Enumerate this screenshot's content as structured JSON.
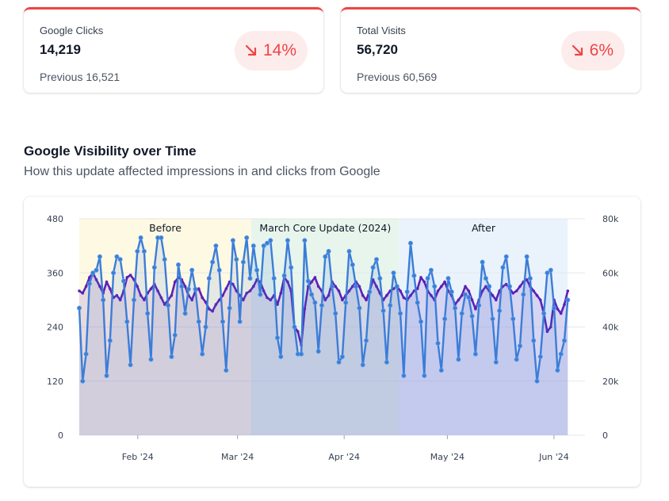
{
  "cards": [
    {
      "label": "Google Clicks",
      "value": "14,219",
      "previous": "Previous 16,521",
      "delta": "14%",
      "direction": "down",
      "color": "#ef4444"
    },
    {
      "label": "Total Visits",
      "value": "56,720",
      "previous": "Previous 60,569",
      "delta": "6%",
      "direction": "down",
      "color": "#ef4444"
    }
  ],
  "section": {
    "title": "Google Visibility over Time",
    "subtitle": "How this update affected impressions in and clicks from Google"
  },
  "chart_data": {
    "type": "line",
    "x_range": [
      "2024-01-15",
      "2024-06-10"
    ],
    "x_ticks": [
      {
        "date": "2024-02-01",
        "label": "Feb '24"
      },
      {
        "date": "2024-03-01",
        "label": "Mar '24"
      },
      {
        "date": "2024-04-01",
        "label": "Apr '24"
      },
      {
        "date": "2024-05-01",
        "label": "May '24"
      },
      {
        "date": "2024-06-01",
        "label": "Jun '24"
      }
    ],
    "y_left": {
      "min": 0,
      "max": 480,
      "ticks": [
        "0",
        "120",
        "240",
        "360",
        "480"
      ]
    },
    "y_right": {
      "min": 0,
      "max": 80000,
      "ticks": [
        "0",
        "20k",
        "40k",
        "60k",
        "80k"
      ]
    },
    "grid": true,
    "periods": [
      {
        "label": "Before",
        "start": "2024-01-15",
        "end": "2024-03-05",
        "color": "#fef9e3"
      },
      {
        "label": "March Core Update (2024)",
        "start": "2024-03-05",
        "end": "2024-04-17",
        "color": "#e8f5ec"
      },
      {
        "label": "After",
        "start": "2024-04-17",
        "end": "2024-06-05",
        "color": "#eaf3fc"
      }
    ],
    "series": [
      {
        "axis": "left",
        "color": "#5b21b6",
        "values": [
          320,
          315,
          330,
          350,
          360,
          345,
          330,
          315,
          340,
          325,
          305,
          310,
          300,
          320,
          350,
          355,
          345,
          330,
          310,
          300,
          315,
          325,
          335,
          320,
          305,
          290,
          300,
          310,
          340,
          350,
          345,
          330,
          310,
          300,
          320,
          325,
          305,
          295,
          280,
          275,
          290,
          300,
          310,
          325,
          340,
          335,
          320,
          310,
          300,
          315,
          320,
          330,
          345,
          340,
          320,
          305,
          300,
          310,
          290,
          315,
          350,
          340,
          320,
          240,
          230,
          200,
          280,
          330,
          340,
          350,
          330,
          320,
          300,
          310,
          340,
          330,
          320,
          300,
          310,
          320,
          330,
          340,
          330,
          310,
          300,
          320,
          345,
          330,
          315,
          300,
          310,
          320,
          325,
          330,
          320,
          305,
          300,
          310,
          320,
          325,
          350,
          340,
          320,
          310,
          300,
          320,
          330,
          340,
          320,
          310,
          290,
          300,
          310,
          330,
          320,
          300,
          280,
          300,
          320,
          330,
          320,
          310,
          300,
          320,
          330,
          335,
          325,
          315,
          320,
          330,
          340,
          345,
          330,
          320,
          310,
          300,
          270,
          230,
          240,
          300,
          280,
          270,
          290,
          320
        ]
      },
      {
        "axis": "right",
        "color": "#3b7dd8",
        "values": [
          47000,
          20000,
          30000,
          56000,
          60000,
          61000,
          66000,
          50000,
          22000,
          35000,
          60000,
          66000,
          65000,
          57000,
          42000,
          26000,
          50000,
          68000,
          73000,
          68000,
          45000,
          28000,
          62000,
          73000,
          73000,
          65000,
          48000,
          29000,
          37000,
          63000,
          55000,
          45000,
          54000,
          61000,
          54000,
          42000,
          30000,
          40000,
          58000,
          64000,
          70000,
          61000,
          42000,
          24000,
          47000,
          72000,
          65000,
          42000,
          64000,
          73000,
          58000,
          70000,
          61000,
          52000,
          70000,
          71000,
          72000,
          58000,
          36000,
          29000,
          59000,
          72000,
          62000,
          40000,
          30000,
          30000,
          72000,
          57000,
          52000,
          49000,
          31000,
          48000,
          66000,
          68000,
          55000,
          45000,
          27000,
          29000,
          49000,
          68000,
          63000,
          55000,
          47000,
          26000,
          35000,
          53000,
          62000,
          65000,
          58000,
          46000,
          27000,
          48000,
          60000,
          55000,
          45000,
          22000,
          53000,
          71000,
          59000,
          49000,
          42000,
          22000,
          58000,
          61000,
          55000,
          34000,
          24000,
          43000,
          58000,
          53000,
          47000,
          28000,
          45000,
          52000,
          51000,
          44000,
          30000,
          48000,
          64000,
          58000,
          55000,
          43000,
          27000,
          46000,
          62000,
          66000,
          55000,
          43000,
          28000,
          33000,
          52000,
          66000,
          58000,
          35000,
          20000,
          29000,
          45000,
          60000,
          61000,
          47000,
          24000,
          30000,
          35000,
          50000
        ]
      }
    ]
  }
}
